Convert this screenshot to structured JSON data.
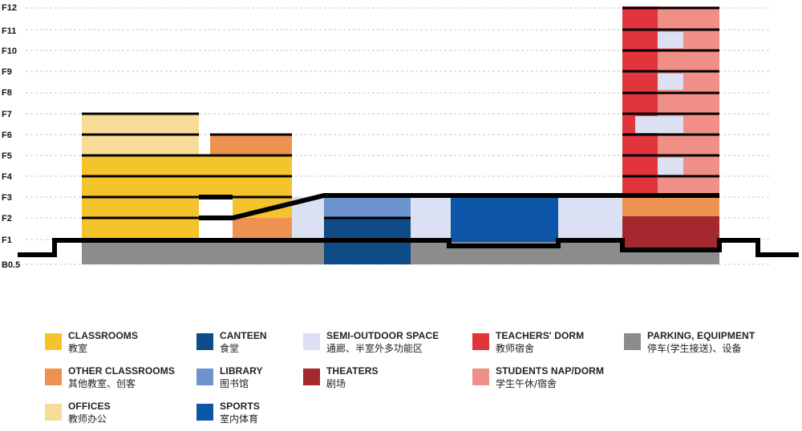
{
  "floors": [
    "F12",
    "F11",
    "F10",
    "F9",
    "F8",
    "F7",
    "F6",
    "F5",
    "F4",
    "F3",
    "F2",
    "F1",
    "B0.5"
  ],
  "colors": {
    "classrooms": "#F5C32C",
    "other_classrooms": "#EE9251",
    "offices": "#F7DC98",
    "canteen": "#0F4C85",
    "library": "#6C93CD",
    "sports": "#0E56A7",
    "semi_outdoor": "#DBE1F2",
    "theaters": "#A4282E",
    "teachers_dorm": "#E2343C",
    "students_dorm": "#F08F88",
    "parking": "#8C8C8C",
    "line": "#000000"
  },
  "legend": [
    {
      "key": "classrooms",
      "en": "CLASSROOMS",
      "cn": "教室"
    },
    {
      "key": "other_classrooms",
      "en": "OTHER CLASSROOMS",
      "cn": "其他教室、创客"
    },
    {
      "key": "offices",
      "en": "OFFICES",
      "cn": "教师办公"
    },
    {
      "key": "canteen",
      "en": "CANTEEN",
      "cn": "食堂"
    },
    {
      "key": "library",
      "en": "LIBRARY",
      "cn": "图书馆"
    },
    {
      "key": "sports",
      "en": "SPORTS",
      "cn": "室内体育"
    },
    {
      "key": "semi_outdoor",
      "en": "SEMI-OUTDOOR SPACE",
      "cn": "通廊、半室外多功能区"
    },
    {
      "key": "theaters",
      "en": "THEATERS",
      "cn": "剧场"
    },
    {
      "key": "teachers_dorm",
      "en": "TEACHERS' DORM",
      "cn": "教师宿舍"
    },
    {
      "key": "students_dorm",
      "en": "STUDENTS NAP/DORM",
      "cn": "学生午休/宿舍"
    },
    {
      "key": "parking",
      "en": "PARKING, EQUIPMENT",
      "cn": "停车(学生接送)、设备"
    }
  ]
}
